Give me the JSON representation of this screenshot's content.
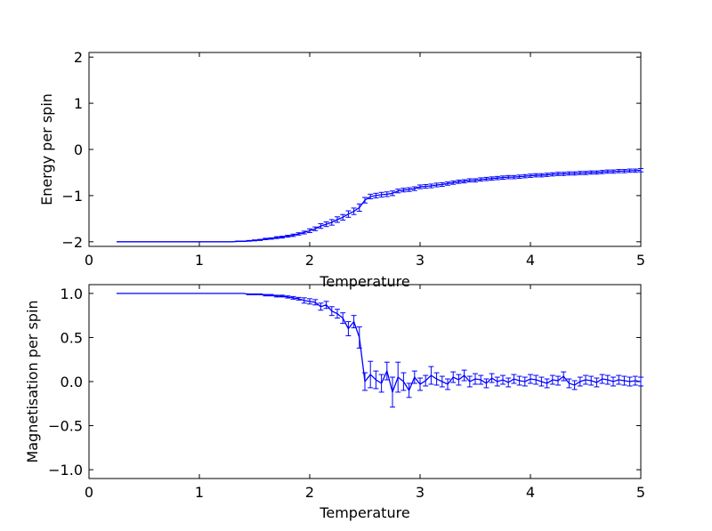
{
  "chart_data": [
    {
      "type": "line",
      "title": "",
      "xlabel": "Temperature",
      "ylabel": "Energy per spin",
      "xlim": [
        0,
        5
      ],
      "ylim": [
        -2.1,
        2.1
      ],
      "xticks": [
        "0",
        "1",
        "2",
        "3",
        "4",
        "5"
      ],
      "yticks": [
        "-2",
        "-1",
        "0",
        "1",
        "2"
      ],
      "grid": false,
      "line_color": "#0000ff",
      "series": [
        {
          "x": [
            0.25,
            0.3,
            0.35,
            0.4,
            0.45,
            0.5,
            0.55,
            0.6,
            0.65,
            0.7,
            0.75,
            0.8,
            0.85,
            0.9,
            0.95,
            1.0,
            1.05,
            1.1,
            1.15,
            1.2,
            1.25,
            1.3,
            1.35,
            1.4,
            1.45,
            1.5,
            1.55,
            1.6,
            1.65,
            1.7,
            1.75,
            1.8,
            1.85,
            1.9,
            1.95,
            2.0,
            2.05,
            2.1,
            2.15,
            2.2,
            2.25,
            2.3,
            2.35,
            2.4,
            2.45,
            2.5,
            2.55,
            2.6,
            2.65,
            2.7,
            2.75,
            2.8,
            2.85,
            2.9,
            2.95,
            3.0,
            3.05,
            3.1,
            3.15,
            3.2,
            3.25,
            3.3,
            3.35,
            3.4,
            3.45,
            3.5,
            3.55,
            3.6,
            3.65,
            3.7,
            3.75,
            3.8,
            3.85,
            3.9,
            3.95,
            4.0,
            4.05,
            4.1,
            4.15,
            4.2,
            4.25,
            4.3,
            4.35,
            4.4,
            4.45,
            4.5,
            4.55,
            4.6,
            4.65,
            4.7,
            4.75,
            4.8,
            4.85,
            4.9,
            4.95,
            5.0
          ],
          "y": [
            -2.0,
            -2.0,
            -2.0,
            -2.0,
            -2.0,
            -2.0,
            -2.0,
            -2.0,
            -2.0,
            -2.0,
            -2.0,
            -2.0,
            -2.0,
            -2.0,
            -2.0,
            -2.0,
            -2.0,
            -2.0,
            -2.0,
            -2.0,
            -2.0,
            -2.0,
            -1.99,
            -1.99,
            -1.98,
            -1.97,
            -1.96,
            -1.94,
            -1.93,
            -1.91,
            -1.9,
            -1.88,
            -1.86,
            -1.83,
            -1.8,
            -1.76,
            -1.72,
            -1.66,
            -1.62,
            -1.58,
            -1.52,
            -1.47,
            -1.4,
            -1.34,
            -1.26,
            -1.1,
            -1.02,
            -1.0,
            -0.98,
            -0.97,
            -0.95,
            -0.9,
            -0.88,
            -0.87,
            -0.85,
            -0.81,
            -0.8,
            -0.79,
            -0.77,
            -0.76,
            -0.74,
            -0.72,
            -0.7,
            -0.69,
            -0.67,
            -0.67,
            -0.65,
            -0.64,
            -0.63,
            -0.62,
            -0.61,
            -0.6,
            -0.6,
            -0.59,
            -0.58,
            -0.57,
            -0.56,
            -0.56,
            -0.55,
            -0.54,
            -0.53,
            -0.53,
            -0.52,
            -0.52,
            -0.51,
            -0.51,
            -0.5,
            -0.5,
            -0.49,
            -0.48,
            -0.48,
            -0.47,
            -0.47,
            -0.46,
            -0.46,
            -0.45
          ],
          "err": [
            0,
            0,
            0,
            0,
            0,
            0,
            0,
            0,
            0,
            0,
            0,
            0,
            0,
            0,
            0,
            0,
            0,
            0,
            0,
            0,
            0,
            0,
            0.005,
            0.005,
            0.008,
            0.01,
            0.012,
            0.015,
            0.015,
            0.02,
            0.02,
            0.02,
            0.025,
            0.025,
            0.03,
            0.04,
            0.04,
            0.05,
            0.05,
            0.06,
            0.06,
            0.06,
            0.07,
            0.07,
            0.08,
            0.06,
            0.05,
            0.05,
            0.05,
            0.05,
            0.05,
            0.04,
            0.04,
            0.04,
            0.04,
            0.04,
            0.04,
            0.04,
            0.04,
            0.04,
            0.035,
            0.035,
            0.035,
            0.035,
            0.035,
            0.035,
            0.035,
            0.035,
            0.035,
            0.035,
            0.035,
            0.035,
            0.035,
            0.035,
            0.035,
            0.035,
            0.035,
            0.035,
            0.035,
            0.035,
            0.035,
            0.035,
            0.035,
            0.035,
            0.035,
            0.035,
            0.035,
            0.035,
            0.035,
            0.035,
            0.035,
            0.035,
            0.035,
            0.035,
            0.035,
            0.035
          ]
        }
      ]
    },
    {
      "type": "line",
      "title": "",
      "xlabel": "Temperature",
      "ylabel": "Magnetisation per spin",
      "xlim": [
        0,
        5
      ],
      "ylim": [
        -1.1,
        1.1
      ],
      "xticks": [
        "0",
        "1",
        "2",
        "3",
        "4",
        "5"
      ],
      "yticks": [
        "-1.0",
        "-0.5",
        "0.0",
        "0.5",
        "1.0"
      ],
      "grid": false,
      "line_color": "#0000ff",
      "series": [
        {
          "x": [
            0.25,
            0.3,
            0.35,
            0.4,
            0.45,
            0.5,
            0.55,
            0.6,
            0.65,
            0.7,
            0.75,
            0.8,
            0.85,
            0.9,
            0.95,
            1.0,
            1.05,
            1.1,
            1.15,
            1.2,
            1.25,
            1.3,
            1.35,
            1.4,
            1.45,
            1.5,
            1.55,
            1.6,
            1.65,
            1.7,
            1.75,
            1.8,
            1.85,
            1.9,
            1.95,
            2.0,
            2.05,
            2.1,
            2.15,
            2.2,
            2.25,
            2.3,
            2.35,
            2.4,
            2.45,
            2.5,
            2.55,
            2.6,
            2.65,
            2.7,
            2.75,
            2.8,
            2.85,
            2.9,
            2.95,
            3.0,
            3.05,
            3.1,
            3.15,
            3.2,
            3.25,
            3.3,
            3.35,
            3.4,
            3.45,
            3.5,
            3.55,
            3.6,
            3.65,
            3.7,
            3.75,
            3.8,
            3.85,
            3.9,
            3.95,
            4.0,
            4.05,
            4.1,
            4.15,
            4.2,
            4.25,
            4.3,
            4.35,
            4.4,
            4.45,
            4.5,
            4.55,
            4.6,
            4.65,
            4.7,
            4.75,
            4.8,
            4.85,
            4.9,
            4.95,
            5.0
          ],
          "y": [
            1.0,
            1.0,
            1.0,
            1.0,
            1.0,
            1.0,
            1.0,
            1.0,
            1.0,
            1.0,
            1.0,
            1.0,
            1.0,
            1.0,
            1.0,
            1.0,
            1.0,
            1.0,
            1.0,
            1.0,
            1.0,
            1.0,
            1.0,
            1.0,
            0.99,
            0.99,
            0.99,
            0.98,
            0.98,
            0.97,
            0.97,
            0.96,
            0.95,
            0.94,
            0.92,
            0.91,
            0.9,
            0.85,
            0.87,
            0.8,
            0.77,
            0.72,
            0.6,
            0.68,
            0.5,
            0.0,
            0.08,
            0.02,
            -0.02,
            0.12,
            -0.12,
            0.05,
            0.0,
            -0.1,
            0.05,
            -0.03,
            0.01,
            0.07,
            0.03,
            0.0,
            -0.03,
            0.05,
            0.02,
            0.07,
            0.0,
            0.03,
            0.02,
            -0.02,
            0.04,
            0.0,
            0.02,
            -0.01,
            0.03,
            0.01,
            0.0,
            0.03,
            0.02,
            0.0,
            -0.02,
            0.02,
            0.01,
            0.06,
            -0.02,
            -0.04,
            0.0,
            0.02,
            0.01,
            -0.01,
            0.03,
            0.02,
            0.0,
            0.02,
            0.01,
            0.0,
            0.01,
            0.0
          ],
          "err": [
            0,
            0,
            0,
            0,
            0,
            0,
            0,
            0,
            0,
            0,
            0,
            0,
            0,
            0,
            0,
            0,
            0,
            0,
            0,
            0,
            0,
            0,
            0,
            0,
            0.005,
            0.005,
            0.005,
            0.008,
            0.008,
            0.01,
            0.01,
            0.012,
            0.015,
            0.015,
            0.03,
            0.03,
            0.03,
            0.04,
            0.04,
            0.05,
            0.05,
            0.06,
            0.08,
            0.07,
            0.12,
            0.1,
            0.15,
            0.1,
            0.1,
            0.1,
            0.17,
            0.17,
            0.1,
            0.08,
            0.07,
            0.07,
            0.06,
            0.1,
            0.07,
            0.06,
            0.06,
            0.06,
            0.06,
            0.06,
            0.06,
            0.06,
            0.05,
            0.05,
            0.05,
            0.05,
            0.05,
            0.05,
            0.05,
            0.05,
            0.05,
            0.05,
            0.05,
            0.05,
            0.05,
            0.05,
            0.05,
            0.05,
            0.05,
            0.05,
            0.05,
            0.05,
            0.05,
            0.05,
            0.05,
            0.05,
            0.05,
            0.05,
            0.05,
            0.05,
            0.05,
            0.05
          ]
        }
      ]
    }
  ]
}
